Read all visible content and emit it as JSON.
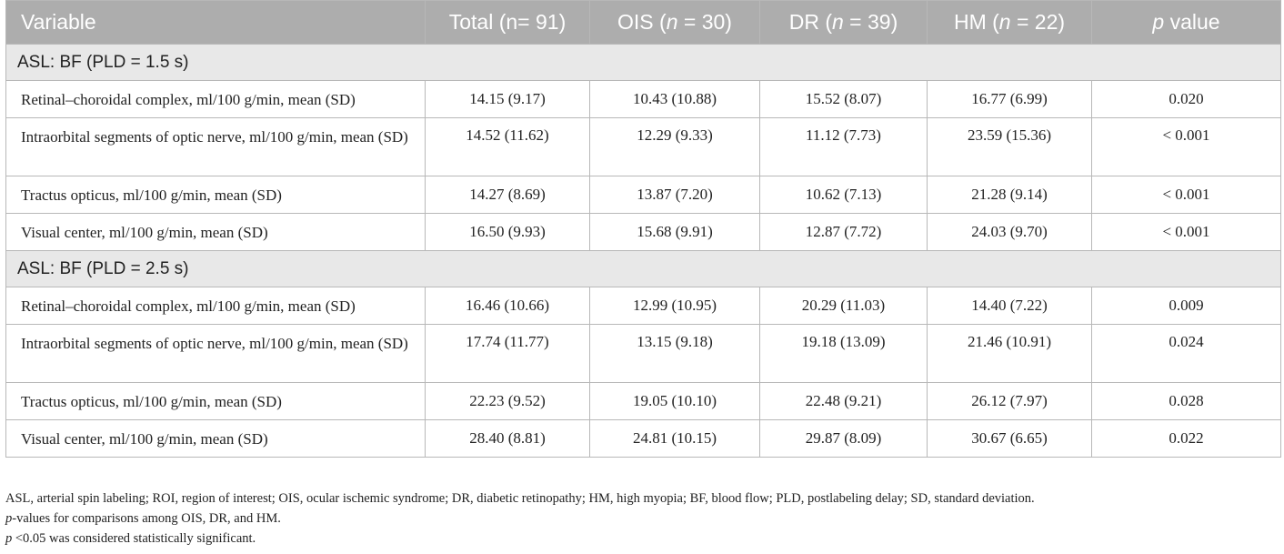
{
  "header": {
    "variable": "Variable",
    "total": "Total (n= 91)",
    "ois_pre": "OIS (",
    "ois_n": "n",
    "ois_post": " = 30)",
    "dr_pre": "DR (",
    "dr_n": "n",
    "dr_post": " = 39)",
    "hm_pre": "HM (",
    "hm_n": "n",
    "hm_post": " = 22)",
    "p_p": "p",
    "p_post": " value"
  },
  "sections": [
    {
      "title": "ASL: BF (PLD = 1.5 s)",
      "rows": [
        {
          "label": "Retinal–choroidal complex, ml/100 g/min, mean (SD)",
          "total": "14.15 (9.17)",
          "ois": "10.43 (10.88)",
          "dr": "15.52 (8.07)",
          "hm": "16.77 (6.99)",
          "p": "0.020"
        },
        {
          "label": "Intraorbital segments of optic nerve, ml/100 g/min, mean (SD)",
          "total": "14.52 (11.62)",
          "ois": "12.29 (9.33)",
          "dr": "11.12 (7.73)",
          "hm": "23.59 (15.36)",
          "p": "< 0.001"
        },
        {
          "label": "Tractus opticus, ml/100 g/min, mean (SD)",
          "total": "14.27 (8.69)",
          "ois": "13.87 (7.20)",
          "dr": "10.62 (7.13)",
          "hm": "21.28 (9.14)",
          "p": "< 0.001"
        },
        {
          "label": "Visual center, ml/100 g/min, mean (SD)",
          "total": "16.50 (9.93)",
          "ois": "15.68 (9.91)",
          "dr": "12.87 (7.72)",
          "hm": "24.03 (9.70)",
          "p": "< 0.001"
        }
      ]
    },
    {
      "title": "ASL: BF (PLD = 2.5 s)",
      "rows": [
        {
          "label": "Retinal–choroidal complex, ml/100 g/min, mean (SD)",
          "total": "16.46 (10.66)",
          "ois": "12.99 (10.95)",
          "dr": "20.29 (11.03)",
          "hm": "14.40 (7.22)",
          "p": "0.009"
        },
        {
          "label": "Intraorbital segments of optic nerve, ml/100 g/min, mean (SD)",
          "total": "17.74 (11.77)",
          "ois": "13.15 (9.18)",
          "dr": "19.18 (13.09)",
          "hm": "21.46 (10.91)",
          "p": "0.024"
        },
        {
          "label": "Tractus opticus, ml/100 g/min, mean (SD)",
          "total": "22.23 (9.52)",
          "ois": "19.05 (10.10)",
          "dr": "22.48 (9.21)",
          "hm": "26.12 (7.97)",
          "p": "0.028"
        },
        {
          "label": "Visual center, ml/100 g/min, mean (SD)",
          "total": "28.40 (8.81)",
          "ois": "24.81 (10.15)",
          "dr": "29.87 (8.09)",
          "hm": "30.67 (6.65)",
          "p": "0.022"
        }
      ]
    }
  ],
  "footnotes": {
    "abbrev": "ASL, arterial spin labeling; ROI, region of interest; OIS, ocular ischemic syndrome; DR, diabetic retinopathy; HM, high myopia; BF, blood flow; PLD, postlabeling delay; SD, standard deviation.",
    "pvalues_p": "p",
    "pvalues_rest": "-values for comparisons among OIS, DR, and HM.",
    "signif_p": "p",
    "signif_rest": " <0.05 was considered statistically significant."
  }
}
